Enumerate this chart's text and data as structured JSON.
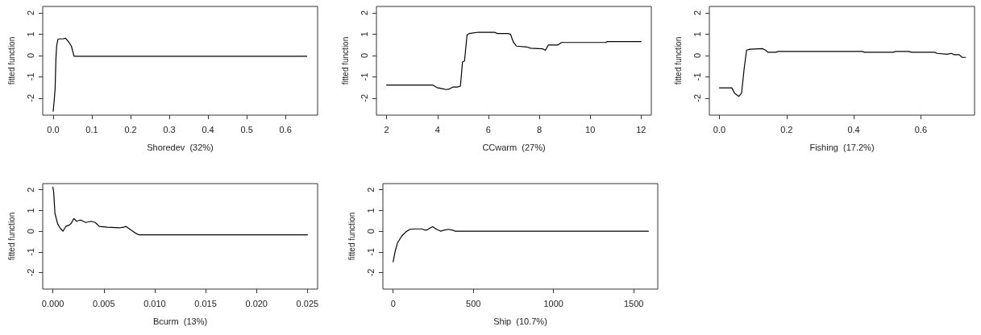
{
  "chart_data": [
    {
      "type": "line",
      "xlabel": "Shoredev  (32%)",
      "ylabel": "fitted function",
      "xlim": [
        -0.027,
        0.683
      ],
      "ylim": [
        -2.8,
        2.3
      ],
      "xticks": [
        {
          "value": 0,
          "label": "0.0"
        },
        0.1,
        0.2,
        0.3,
        0.4,
        0.5,
        0.6
      ],
      "yticks": [
        -2,
        -1,
        0,
        1,
        2
      ],
      "grid": false,
      "marker": "none",
      "line_style": "solid",
      "series": [
        {
          "color": "#000000",
          "x": [
            0,
            0.002,
            0.005,
            0.007,
            0.009,
            0.012,
            0.016,
            0.026,
            0.032,
            0.04,
            0.047,
            0.054,
            0.655
          ],
          "values": [
            -2.62,
            -2.25,
            -1.56,
            -0.19,
            0.44,
            0.75,
            0.78,
            0.78,
            0.81,
            0.63,
            0.44,
            -0.04,
            -0.04
          ]
        }
      ]
    },
    {
      "type": "line",
      "xlabel": "CCwarm  (27%)",
      "ylabel": "fitted function",
      "xlim": [
        1.6,
        12.4
      ],
      "ylim": [
        -2.8,
        2.3
      ],
      "xticks": [
        2,
        4,
        6,
        8,
        10,
        12
      ],
      "yticks": [
        -2,
        -1,
        0,
        1,
        2
      ],
      "grid": false,
      "marker": "none",
      "line_style": "solid",
      "series": [
        {
          "color": "#000000",
          "x": [
            2.0,
            3.82,
            3.98,
            4.19,
            4.35,
            4.45,
            4.61,
            4.77,
            4.9,
            4.98,
            5.06,
            5.16,
            5.24,
            5.61,
            6.24,
            6.35,
            6.77,
            6.87,
            6.98,
            7.1,
            7.5,
            7.66,
            8.14,
            8.24,
            8.35,
            8.72,
            8.87,
            10.61,
            10.66,
            12.0
          ],
          "values": [
            -1.39,
            -1.39,
            -1.51,
            -1.56,
            -1.6,
            -1.58,
            -1.48,
            -1.48,
            -1.44,
            -0.31,
            -0.26,
            0.96,
            1.03,
            1.09,
            1.09,
            1.03,
            1.03,
            0.99,
            0.63,
            0.44,
            0.4,
            0.34,
            0.31,
            0.24,
            0.49,
            0.49,
            0.61,
            0.61,
            0.65,
            0.65
          ]
        }
      ]
    },
    {
      "type": "line",
      "xlabel": "Fishing  (17.2%)",
      "ylabel": "fitted function",
      "xlim": [
        -0.03,
        0.76
      ],
      "ylim": [
        -2.8,
        2.3
      ],
      "xticks": [
        {
          "value": 0,
          "label": "0.0"
        },
        0.2,
        0.4,
        0.6
      ],
      "yticks": [
        -2,
        -1,
        0,
        1,
        2
      ],
      "grid": false,
      "marker": "none",
      "line_style": "solid",
      "series": [
        {
          "color": "#000000",
          "x": [
            0,
            0.037,
            0.045,
            0.058,
            0.066,
            0.074,
            0.081,
            0.091,
            0.129,
            0.137,
            0.145,
            0.168,
            0.175,
            0.425,
            0.433,
            0.518,
            0.525,
            0.564,
            0.572,
            0.641,
            0.648,
            0.679,
            0.691,
            0.698,
            0.714,
            0.723,
            0.733
          ],
          "values": [
            -1.52,
            -1.52,
            -1.77,
            -1.92,
            -1.77,
            -0.57,
            0.25,
            0.29,
            0.32,
            0.25,
            0.15,
            0.15,
            0.19,
            0.19,
            0.15,
            0.15,
            0.19,
            0.19,
            0.15,
            0.15,
            0.1,
            0.06,
            0.1,
            0.04,
            0.04,
            -0.09,
            -0.09
          ]
        }
      ]
    },
    {
      "type": "line",
      "xlabel": "Bcurm  (13%)",
      "ylabel": "fitted function",
      "xlim": [
        -0.001,
        0.026
      ],
      "ylim": [
        -2.8,
        2.3
      ],
      "xticks": [
        {
          "value": 0,
          "label": "0.000"
        },
        0.005,
        {
          "value": 0.01,
          "label": "0.010"
        },
        0.015,
        {
          "value": 0.02,
          "label": "0.020"
        },
        0.025
      ],
      "yticks": [
        -2,
        -1,
        0,
        1,
        2
      ],
      "grid": false,
      "marker": "none",
      "line_style": "solid",
      "series": [
        {
          "color": "#000000",
          "x": [
            0,
            8e-05,
            0.0002,
            0.00047,
            0.00074,
            0.001,
            0.00126,
            0.0016,
            0.0018,
            0.00205,
            0.00232,
            0.00271,
            0.00324,
            0.00376,
            0.00416,
            0.00455,
            0.00534,
            0.00653,
            0.00692,
            0.00718,
            0.00771,
            0.00824,
            0.0085,
            0.025
          ],
          "values": [
            2.13,
            1.87,
            0.86,
            0.35,
            0.13,
            0,
            0.23,
            0.29,
            0.38,
            0.61,
            0.48,
            0.54,
            0.42,
            0.48,
            0.42,
            0.23,
            0.19,
            0.16,
            0.19,
            0.23,
            0.04,
            -0.13,
            -0.18,
            -0.18
          ]
        }
      ]
    },
    {
      "type": "line",
      "xlabel": "Ship  (10.7%)",
      "ylabel": "fitted function",
      "xlim": [
        -64,
        1650
      ],
      "ylim": [
        -2.8,
        2.3
      ],
      "xticks": [
        0,
        500,
        1000,
        1500
      ],
      "yticks": [
        -2,
        -1,
        0,
        1,
        2
      ],
      "grid": false,
      "marker": "none",
      "line_style": "solid",
      "series": [
        {
          "color": "#000000",
          "x": [
            0,
            12,
            28,
            54,
            79,
            104,
            137,
            179,
            196,
            212,
            229,
            246,
            271,
            296,
            321,
            346,
            371,
            388,
            1592
          ],
          "values": [
            -1.48,
            -0.99,
            -0.55,
            -0.23,
            -0.04,
            0.09,
            0.11,
            0.11,
            0.06,
            0.06,
            0.15,
            0.22,
            0.09,
            0,
            0.06,
            0.09,
            0.05,
            0,
            0
          ]
        }
      ]
    }
  ]
}
